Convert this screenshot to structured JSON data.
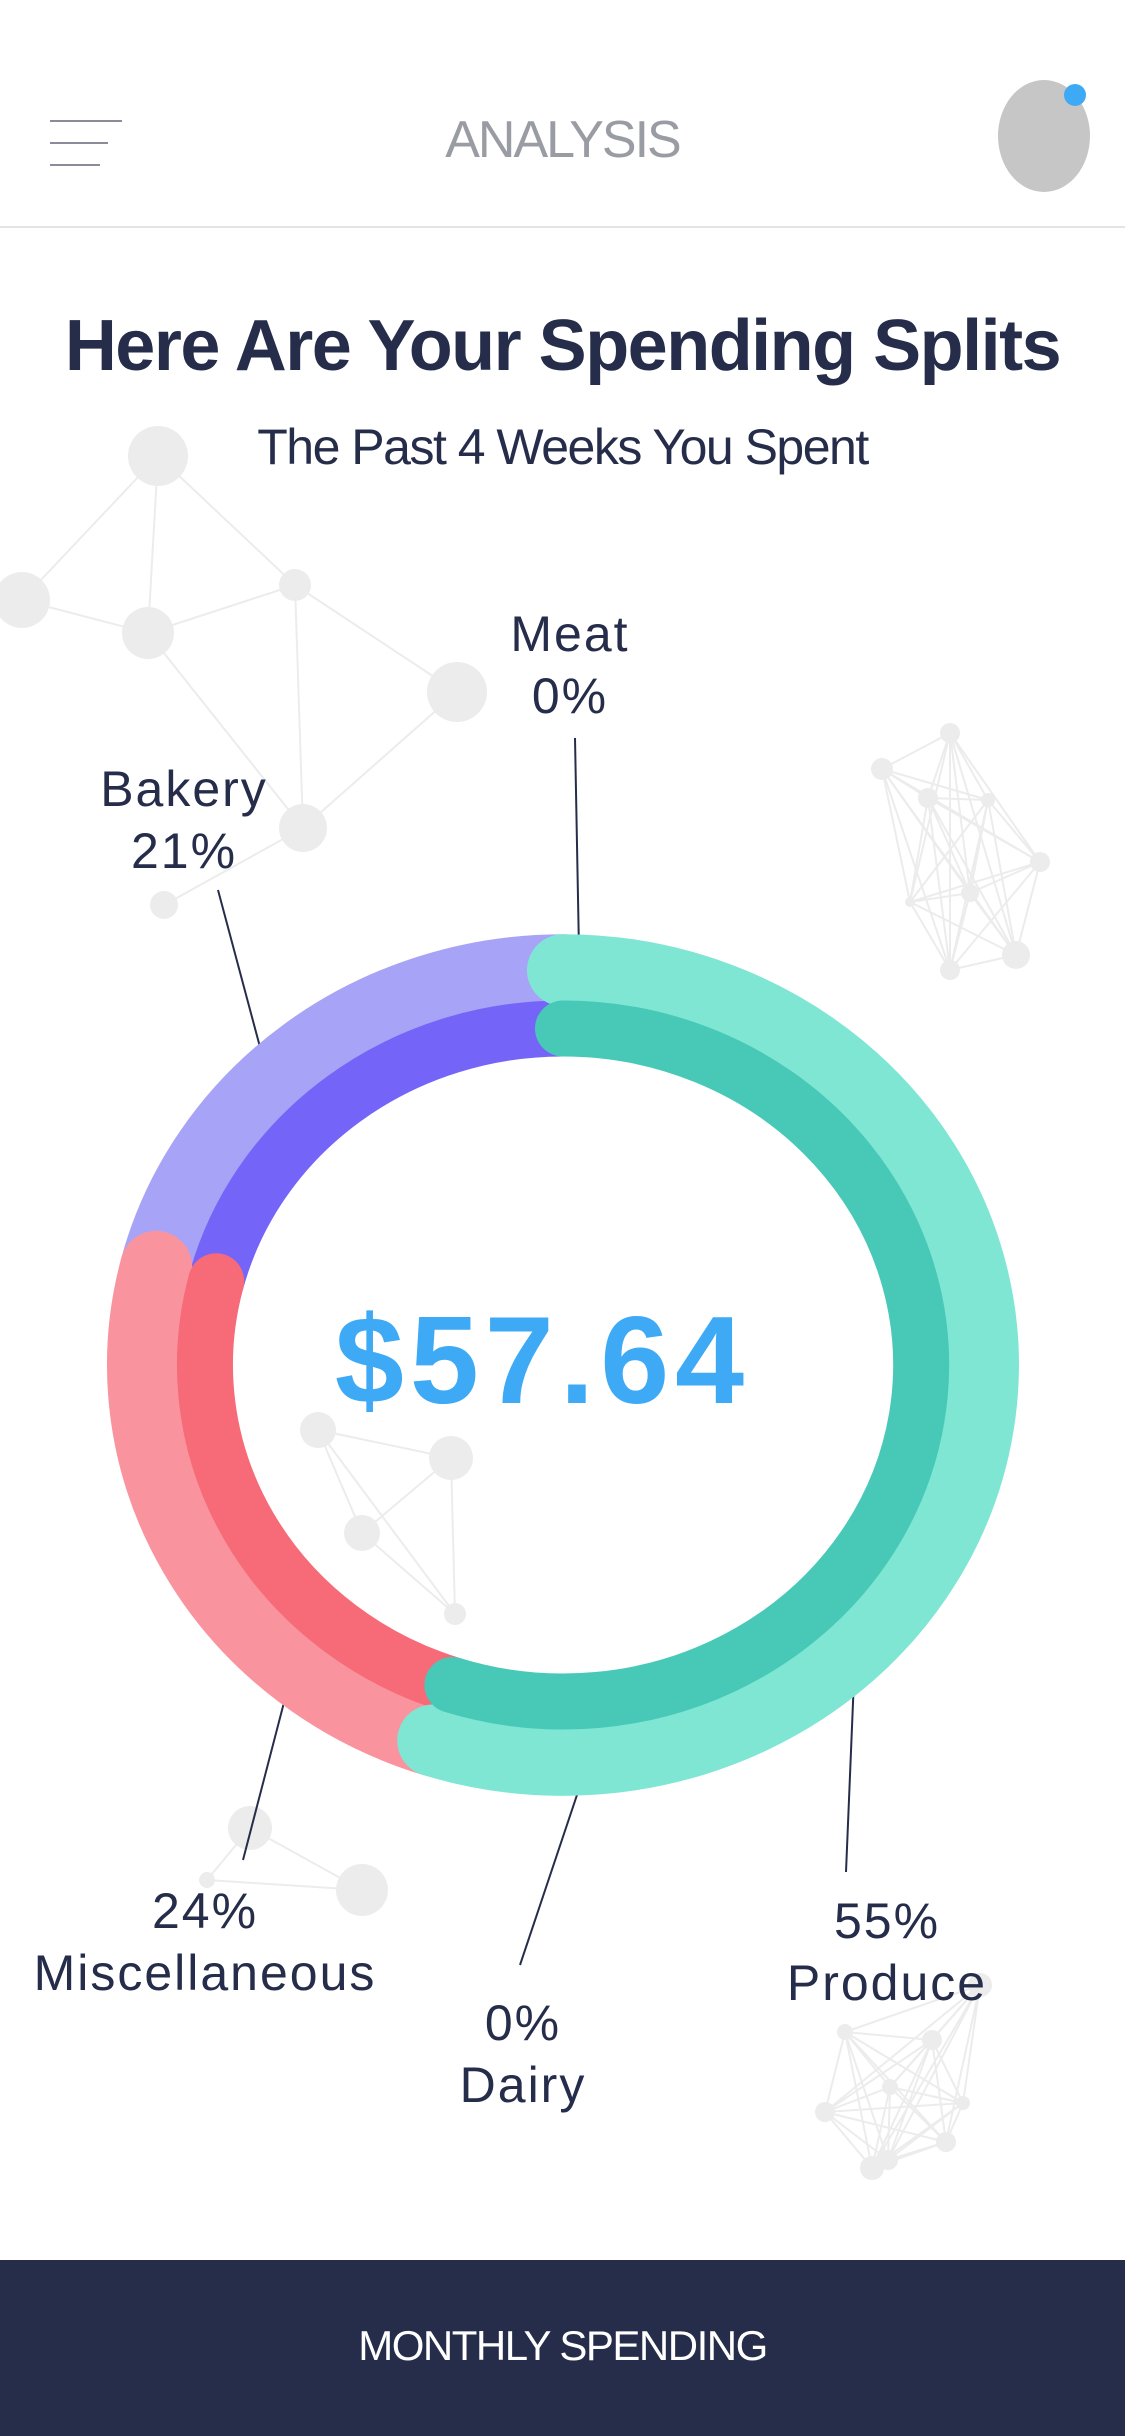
{
  "header": {
    "title": "ANALYSIS"
  },
  "page": {
    "headline": "Here Are Your Spending Splits",
    "subheadline": "The Past 4 Weeks You Spent"
  },
  "chart_data": {
    "type": "pie",
    "title": "",
    "center_label": "$57.64",
    "categories": [
      "Produce",
      "Dairy",
      "Miscellaneous",
      "Bakery",
      "Meat"
    ],
    "values": [
      55,
      0,
      24,
      21,
      0
    ],
    "unit": "%",
    "labels": [
      {
        "name": "Meat",
        "value": "0%"
      },
      {
        "name": "Bakery",
        "value": "21%"
      },
      {
        "name": "Miscellaneous",
        "value": "24%"
      },
      {
        "name": "Dairy",
        "value": "0%"
      },
      {
        "name": "Produce",
        "value": "55%"
      }
    ],
    "colors": {
      "Produce": {
        "outer": "#7fe6d4",
        "inner": "#48c9b8"
      },
      "Miscellaneous": {
        "outer": "#f9949e",
        "inner": "#f76a78"
      },
      "Bakery": {
        "outer": "#a7a3f7",
        "inner": "#7564f8"
      }
    }
  },
  "footer": {
    "label": "MONTHLY SPENDING"
  },
  "icons": {
    "menu": "hamburger-menu-icon",
    "avatar": "user-avatar"
  },
  "colors": {
    "navy": "#262d4a",
    "accent": "#3eaaf5"
  }
}
